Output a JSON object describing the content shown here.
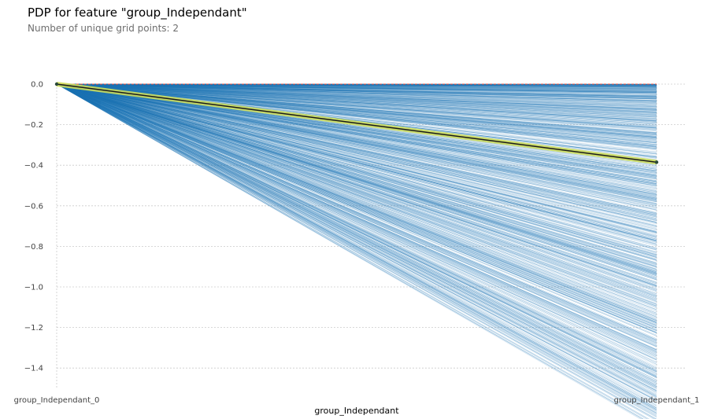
{
  "chart_data": {
    "type": "line",
    "title": "PDP for feature \"group_Independant\"",
    "subtitle": "Number of unique grid points: 2",
    "xlabel": "group_Independant",
    "ylabel": "",
    "categories": [
      "group_Independant_0",
      "group_Independant_1"
    ],
    "ylim": [
      -1.5,
      0.0
    ],
    "yticks": [
      0.0,
      -0.2,
      -0.4,
      -0.6,
      -0.8,
      -1.0,
      -1.2,
      -1.4
    ],
    "ytick_labels": [
      "0.0",
      "−0.2",
      "−0.4",
      "−0.6",
      "−0.8",
      "−1.0",
      "−1.2",
      "−1.4"
    ],
    "grid": true,
    "series": [
      {
        "kind": "pdp",
        "values": [
          0.0,
          -0.385
        ]
      },
      {
        "kind": "reference",
        "values": [
          0.0,
          0.0
        ]
      }
    ],
    "ice": {
      "count": 1400,
      "start": 0.0,
      "end_min": -1.7,
      "end_max": -0.0
    },
    "colors": {
      "ice": "#1f77b4",
      "pdp_line": "#1a1a1a",
      "pdp_band": "#d4e157",
      "pdp_marker": "#2b4a3a",
      "reference": "#e74c3c",
      "grid": "#cccccc",
      "tick_text": "#424242"
    }
  }
}
